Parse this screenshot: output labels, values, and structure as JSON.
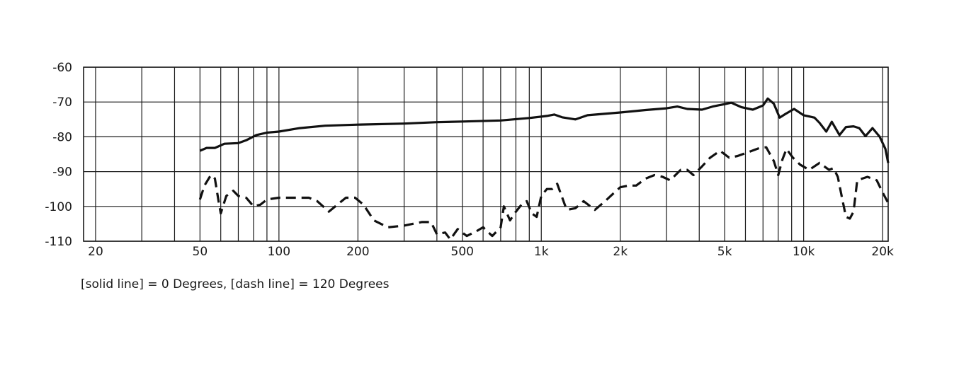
{
  "chart_data": {
    "type": "line",
    "title": "",
    "xlabel": "",
    "ylabel": "",
    "x_scale": "log",
    "xlim": [
      18,
      21000
    ],
    "ylim": [
      -110,
      -60
    ],
    "grid": true,
    "x_ticks": [
      20,
      50,
      100,
      200,
      500,
      1000,
      2000,
      5000,
      10000,
      20000
    ],
    "x_tick_labels": [
      "20",
      "50",
      "100",
      "200",
      "500",
      "1k",
      "2k",
      "5k",
      "10k",
      "20k"
    ],
    "x_gridlines": [
      20,
      30,
      40,
      50,
      60,
      70,
      80,
      90,
      100,
      200,
      300,
      400,
      500,
      600,
      700,
      800,
      900,
      1000,
      2000,
      3000,
      4000,
      5000,
      6000,
      7000,
      8000,
      9000,
      10000,
      20000
    ],
    "y_ticks": [
      -60,
      -70,
      -80,
      -90,
      -100,
      -110
    ],
    "y_tick_labels": [
      "-60",
      "-70",
      "-80",
      "-90",
      "-100",
      "-110"
    ],
    "caption": "[solid line] = 0 Degrees, [dash line] = 120 Degrees",
    "series": [
      {
        "style": "solid",
        "color": "#111111",
        "points": [
          [
            50,
            -84
          ],
          [
            53,
            -83.2
          ],
          [
            57,
            -83.2
          ],
          [
            62,
            -82
          ],
          [
            70,
            -81.8
          ],
          [
            75,
            -81
          ],
          [
            82,
            -79.5
          ],
          [
            90,
            -78.8
          ],
          [
            100,
            -78.5
          ],
          [
            120,
            -77.5
          ],
          [
            150,
            -76.8
          ],
          [
            200,
            -76.5
          ],
          [
            300,
            -76.2
          ],
          [
            400,
            -75.8
          ],
          [
            500,
            -75.6
          ],
          [
            700,
            -75.3
          ],
          [
            900,
            -74.6
          ],
          [
            1050,
            -74
          ],
          [
            1120,
            -73.6
          ],
          [
            1200,
            -74.4
          ],
          [
            1350,
            -75
          ],
          [
            1500,
            -73.8
          ],
          [
            2000,
            -73
          ],
          [
            2500,
            -72.3
          ],
          [
            3000,
            -71.8
          ],
          [
            3300,
            -71.3
          ],
          [
            3600,
            -72
          ],
          [
            4100,
            -72.2
          ],
          [
            4500,
            -71.3
          ],
          [
            5000,
            -70.6
          ],
          [
            5300,
            -70.2
          ],
          [
            5800,
            -71.5
          ],
          [
            6400,
            -72.2
          ],
          [
            7000,
            -71
          ],
          [
            7300,
            -69
          ],
          [
            7700,
            -70.5
          ],
          [
            8100,
            -74.5
          ],
          [
            8500,
            -73.5
          ],
          [
            9200,
            -72
          ],
          [
            10000,
            -73.8
          ],
          [
            10600,
            -74.2
          ],
          [
            11000,
            -74.5
          ],
          [
            11500,
            -76
          ],
          [
            12200,
            -78.5
          ],
          [
            12800,
            -75.7
          ],
          [
            13700,
            -79.5
          ],
          [
            14500,
            -77.2
          ],
          [
            15500,
            -77
          ],
          [
            16300,
            -77.5
          ],
          [
            17200,
            -79.8
          ],
          [
            18300,
            -77.5
          ],
          [
            19500,
            -80
          ],
          [
            20500,
            -83.5
          ],
          [
            21000,
            -87.5
          ]
        ]
      },
      {
        "style": "dashed",
        "color": "#111111",
        "points": [
          [
            50,
            -98
          ],
          [
            52,
            -94
          ],
          [
            55,
            -91
          ],
          [
            57,
            -92
          ],
          [
            59,
            -99
          ],
          [
            60,
            -102
          ],
          [
            63,
            -97
          ],
          [
            67,
            -95.5
          ],
          [
            70,
            -97
          ],
          [
            75,
            -97.5
          ],
          [
            80,
            -100
          ],
          [
            85,
            -99.5
          ],
          [
            90,
            -98
          ],
          [
            100,
            -97.5
          ],
          [
            130,
            -97.5
          ],
          [
            140,
            -98.5
          ],
          [
            155,
            -101.5
          ],
          [
            170,
            -99
          ],
          [
            180,
            -97.5
          ],
          [
            195,
            -97.5
          ],
          [
            210,
            -99.5
          ],
          [
            230,
            -104
          ],
          [
            260,
            -106
          ],
          [
            300,
            -105.5
          ],
          [
            350,
            -104.5
          ],
          [
            380,
            -104.5
          ],
          [
            400,
            -108
          ],
          [
            430,
            -107.5
          ],
          [
            450,
            -109.5
          ],
          [
            480,
            -106.5
          ],
          [
            520,
            -108.5
          ],
          [
            570,
            -107
          ],
          [
            600,
            -106
          ],
          [
            650,
            -108.5
          ],
          [
            700,
            -106
          ],
          [
            720,
            -100
          ],
          [
            760,
            -104
          ],
          [
            800,
            -101.5
          ],
          [
            850,
            -99
          ],
          [
            880,
            -98.5
          ],
          [
            920,
            -102
          ],
          [
            960,
            -103
          ],
          [
            1000,
            -97
          ],
          [
            1050,
            -95
          ],
          [
            1100,
            -95
          ],
          [
            1150,
            -93.5
          ],
          [
            1250,
            -101
          ],
          [
            1350,
            -100.5
          ],
          [
            1450,
            -98.5
          ],
          [
            1600,
            -101
          ],
          [
            1750,
            -98.5
          ],
          [
            1900,
            -96
          ],
          [
            2000,
            -94.5
          ],
          [
            2150,
            -94
          ],
          [
            2300,
            -94
          ],
          [
            2500,
            -92
          ],
          [
            2700,
            -91
          ],
          [
            2900,
            -91.5
          ],
          [
            3100,
            -92.5
          ],
          [
            3400,
            -89.5
          ],
          [
            3600,
            -89.5
          ],
          [
            3800,
            -91
          ],
          [
            4100,
            -88.5
          ],
          [
            4400,
            -86
          ],
          [
            4800,
            -84
          ],
          [
            5200,
            -86
          ],
          [
            5600,
            -85.5
          ],
          [
            6200,
            -84.3
          ],
          [
            6800,
            -83.2
          ],
          [
            7200,
            -83
          ],
          [
            7700,
            -87
          ],
          [
            8000,
            -91
          ],
          [
            8300,
            -86.5
          ],
          [
            8600,
            -83.5
          ],
          [
            9100,
            -86
          ],
          [
            9700,
            -88
          ],
          [
            10500,
            -89.5
          ],
          [
            11500,
            -87.5
          ],
          [
            12500,
            -89.5
          ],
          [
            13000,
            -89
          ],
          [
            13500,
            -91.5
          ],
          [
            14000,
            -97.5
          ],
          [
            14500,
            -103
          ],
          [
            15000,
            -103.5
          ],
          [
            15500,
            -101.5
          ],
          [
            16000,
            -92.5
          ],
          [
            17500,
            -91.5
          ],
          [
            19000,
            -92.5
          ],
          [
            20000,
            -96
          ],
          [
            21000,
            -99
          ]
        ]
      }
    ]
  }
}
